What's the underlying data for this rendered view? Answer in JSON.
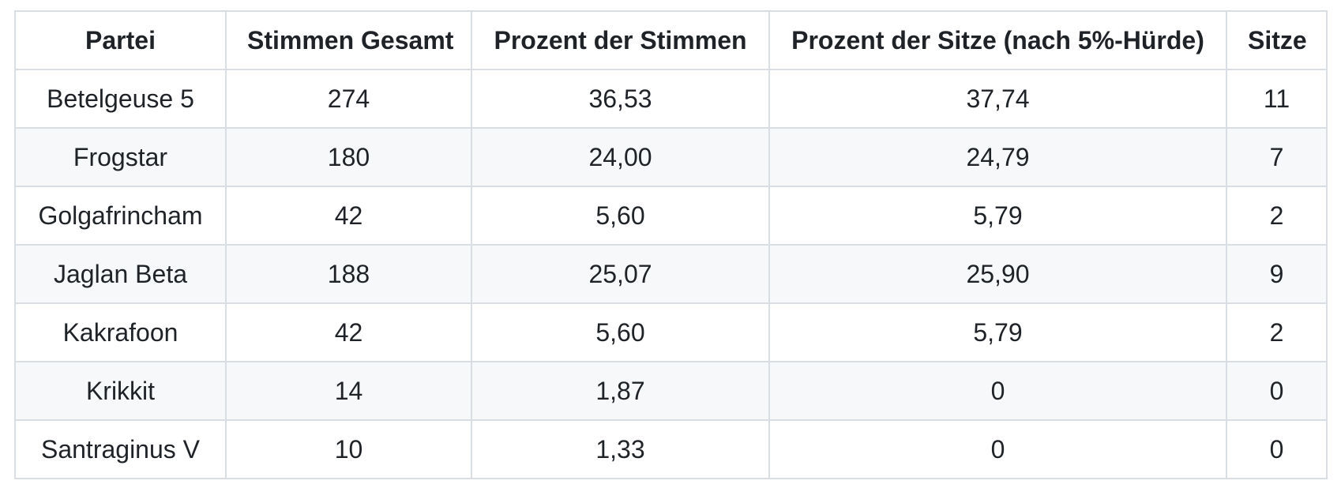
{
  "table": {
    "columns": [
      "Partei",
      "Stimmen Gesamt",
      "Prozent der Stimmen",
      "Prozent der Sitze (nach 5%-Hürde)",
      "Sitze"
    ],
    "rows": [
      [
        "Betelgeuse 5",
        "274",
        "36,53",
        "37,74",
        "11"
      ],
      [
        "Frogstar",
        "180",
        "24,00",
        "24,79",
        "7"
      ],
      [
        "Golgafrincham",
        "42",
        "5,60",
        "5,79",
        "2"
      ],
      [
        "Jaglan Beta",
        "188",
        "25,07",
        "25,90",
        "9"
      ],
      [
        "Kakrafoon",
        "42",
        "5,60",
        "5,79",
        "2"
      ],
      [
        "Krikkit",
        "14",
        "1,87",
        "0",
        "0"
      ],
      [
        "Santraginus V",
        "10",
        "1,33",
        "0",
        "0"
      ]
    ]
  },
  "colors": {
    "background": "#ffffff",
    "row_alt": "#f6f8fa",
    "border": "#d8dee4",
    "text": "#1f2328"
  }
}
